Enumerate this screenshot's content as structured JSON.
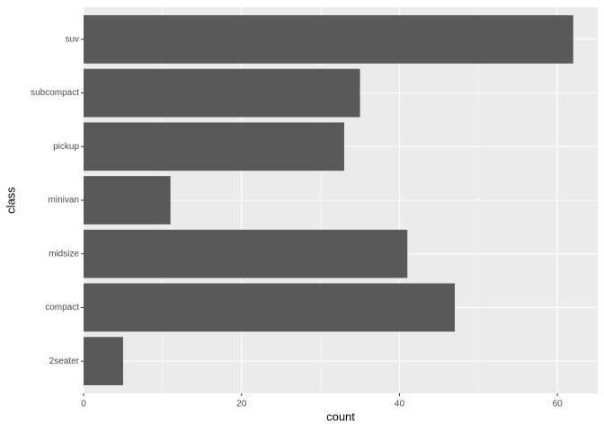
{
  "chart_data": {
    "type": "barh",
    "categories": [
      "2seater",
      "compact",
      "midsize",
      "minivan",
      "pickup",
      "subcompact",
      "suv"
    ],
    "values": [
      5,
      47,
      41,
      11,
      33,
      35,
      62
    ],
    "color": "#595959",
    "xlabel": "count",
    "ylabel": "class",
    "xlim": [
      0,
      65.1
    ],
    "xticks": [
      0,
      20,
      40,
      60
    ],
    "x_minor_ticks": [
      10,
      30,
      50
    ],
    "grid": true
  }
}
